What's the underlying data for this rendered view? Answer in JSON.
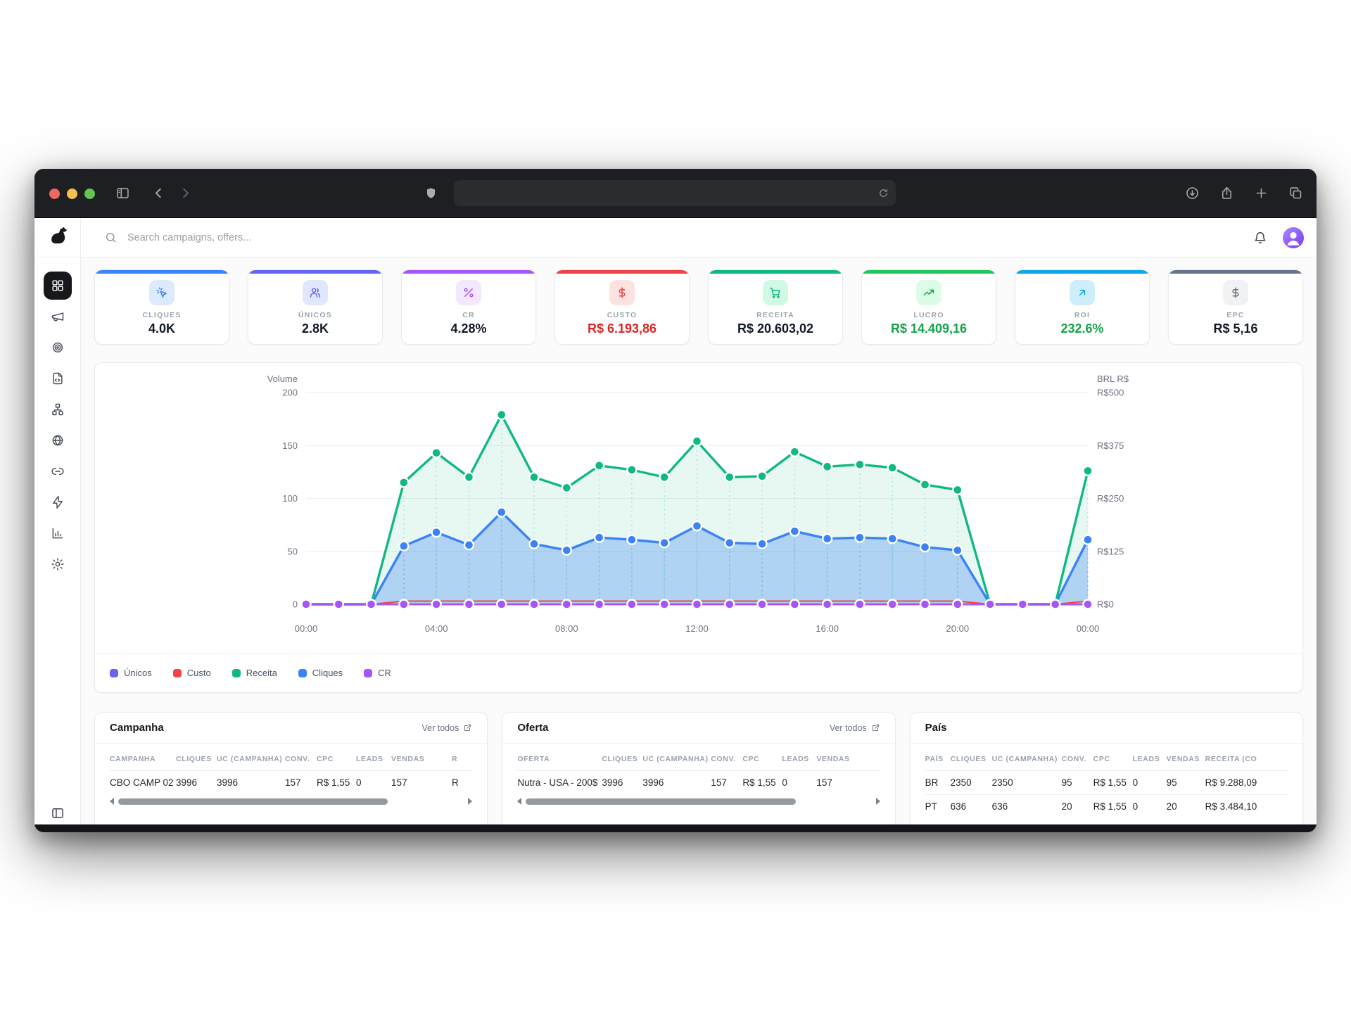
{
  "browser": {
    "traffic_lights": [
      {
        "name": "close",
        "color": "#ed6a5e"
      },
      {
        "name": "minimize",
        "color": "#f4bf4f"
      },
      {
        "name": "maximize",
        "color": "#61c554"
      }
    ],
    "url_value": ""
  },
  "app": {
    "search": {
      "placeholder": "Search campaigns, offers..."
    },
    "sidebar": {
      "logo_icon": "dog-logo",
      "items": [
        {
          "name": "dashboard",
          "icon": "layout-grid",
          "active": true
        },
        {
          "name": "campaigns",
          "icon": "megaphone",
          "active": false
        },
        {
          "name": "offers",
          "icon": "target",
          "active": false
        },
        {
          "name": "pages",
          "icon": "file-code",
          "active": false
        },
        {
          "name": "flows",
          "icon": "network",
          "active": false
        },
        {
          "name": "domains",
          "icon": "globe",
          "active": false
        },
        {
          "name": "links",
          "icon": "link",
          "active": false
        },
        {
          "name": "automation",
          "icon": "zap",
          "active": false
        },
        {
          "name": "reports",
          "icon": "bar-chart",
          "active": false
        },
        {
          "name": "settings",
          "icon": "gear",
          "active": false
        }
      ],
      "bottom_icon": "panel-collapse"
    },
    "kpis": [
      {
        "label": "CLIQUES",
        "value": "4.0K",
        "accent": "#3b82f6",
        "icon": "cursor-click",
        "icon_bg": "#dbeafe",
        "icon_color": "#3b82f6",
        "value_color": "#111827"
      },
      {
        "label": "ÚNICOS",
        "value": "2.8K",
        "accent": "#6366f1",
        "icon": "users",
        "icon_bg": "#e0e7ff",
        "icon_color": "#6366f1",
        "value_color": "#111827"
      },
      {
        "label": "CR",
        "value": "4.28%",
        "accent": "#a855f7",
        "icon": "percent",
        "icon_bg": "#f3e8ff",
        "icon_color": "#a855f7",
        "value_color": "#111827"
      },
      {
        "label": "CUSTO",
        "value": "R$ 6.193,86",
        "accent": "#ef4444",
        "icon": "dollar",
        "icon_bg": "#fee2e2",
        "icon_color": "#ef4444",
        "value_color": "#dc2626"
      },
      {
        "label": "RECEITA",
        "value": "R$ 20.603,02",
        "accent": "#10b981",
        "icon": "cart",
        "icon_bg": "#d1fae5",
        "icon_color": "#10b981",
        "value_color": "#111827"
      },
      {
        "label": "LUCRO",
        "value": "R$ 14.409,16",
        "accent": "#22c55e",
        "icon": "trending-up",
        "icon_bg": "#dcfce7",
        "icon_color": "#16a34a",
        "value_color": "#16a34a"
      },
      {
        "label": "ROI",
        "value": "232.6%",
        "accent": "#0ea5e9",
        "icon": "arrow-up-right",
        "icon_bg": "#cfeefc",
        "icon_color": "#0ea5e9",
        "value_color": "#16a34a"
      },
      {
        "label": "EPC",
        "value": "R$ 5,16",
        "accent": "#64748b",
        "icon": "dollar",
        "icon_bg": "#f1f2f4",
        "icon_color": "#6b7280",
        "value_color": "#111827"
      }
    ],
    "tables": [
      {
        "title": "Campanha",
        "link": "Ver todos",
        "scrollbar": true,
        "columns": [
          "CAMPANHA",
          "CLIQUES",
          "UC (CAMPANHA)",
          "CONV.",
          "CPC",
          "LEADS",
          "VENDAS",
          "R"
        ],
        "rows": [
          [
            "CBO CAMP 02",
            "3996",
            "3996",
            "157",
            "R$ 1,55",
            "0",
            "157",
            "R"
          ]
        ]
      },
      {
        "title": "Oferta",
        "link": "Ver todos",
        "scrollbar": true,
        "columns": [
          "OFERTA",
          "CLIQUES",
          "UC (CAMPANHA)",
          "CONV.",
          "CPC",
          "LEADS",
          "VENDAS"
        ],
        "rows": [
          [
            "Nutra - USA - 200$",
            "3996",
            "3996",
            "157",
            "R$ 1,55",
            "0",
            "157"
          ]
        ]
      },
      {
        "title": "País",
        "link": null,
        "scrollbar": false,
        "columns": [
          "PAÍS",
          "CLIQUES",
          "UC (CAMPANHA)",
          "CONV.",
          "CPC",
          "LEADS",
          "VENDAS",
          "RECEITA (CO"
        ],
        "rows": [
          [
            "BR",
            "2350",
            "2350",
            "95",
            "R$ 1,55",
            "0",
            "95",
            "R$ 9.288,09"
          ],
          [
            "PT",
            "636",
            "636",
            "20",
            "R$ 1,55",
            "0",
            "20",
            "R$ 3.484,10"
          ]
        ]
      }
    ]
  },
  "chart_data": {
    "type": "area",
    "title": "",
    "left_axis": {
      "title": "Volume",
      "ticks": [
        0,
        50,
        100,
        150,
        200
      ],
      "max": 200
    },
    "right_axis": {
      "title": "BRL R$",
      "ticks": [
        "R$0",
        "R$125",
        "R$250",
        "R$375",
        "R$500"
      ]
    },
    "x_tick_labels": [
      "00:00",
      "04:00",
      "08:00",
      "12:00",
      "16:00",
      "20:00",
      "00:00"
    ],
    "x_tick_positions": [
      0,
      4,
      8,
      12,
      16,
      20,
      24
    ],
    "grid": true,
    "legend_position": "bottom",
    "series": [
      {
        "name": "Únicos",
        "color": "#6366f1",
        "values": [
          0,
          0,
          0,
          55,
          68,
          56,
          87,
          57,
          51,
          63,
          61,
          58,
          74,
          58,
          57,
          69,
          62,
          63,
          62,
          54,
          51,
          0,
          0,
          0,
          61
        ]
      },
      {
        "name": "Custo",
        "color": "#ef4444",
        "values": [
          0,
          0,
          0,
          3,
          3,
          3,
          3,
          3,
          3,
          3,
          3,
          3,
          3,
          3,
          3,
          3,
          3,
          3,
          3,
          3,
          3,
          0,
          0,
          0,
          3
        ]
      },
      {
        "name": "Receita",
        "color": "#10b981",
        "fill": "rgba(16,185,129,0.10)",
        "values": [
          0,
          0,
          0,
          115,
          143,
          120,
          179,
          120,
          110,
          131,
          127,
          120,
          154,
          120,
          121,
          144,
          130,
          132,
          129,
          113,
          108,
          0,
          0,
          0,
          126
        ]
      },
      {
        "name": "Cliques",
        "color": "#3b82f6",
        "fill": "rgba(59,130,246,0.32)",
        "values": [
          0,
          0,
          0,
          55,
          68,
          56,
          87,
          57,
          51,
          63,
          61,
          58,
          74,
          58,
          57,
          69,
          62,
          63,
          62,
          54,
          51,
          0,
          0,
          0,
          61
        ]
      },
      {
        "name": "CR",
        "color": "#a855f7",
        "dots_always": true,
        "values": [
          0,
          0,
          0,
          0,
          0,
          0,
          0,
          0,
          0,
          0,
          0,
          0,
          0,
          0,
          0,
          0,
          0,
          0,
          0,
          0,
          0,
          0,
          0,
          0,
          0
        ]
      }
    ],
    "legend": [
      "Únicos",
      "Custo",
      "Receita",
      "Cliques",
      "CR"
    ]
  }
}
